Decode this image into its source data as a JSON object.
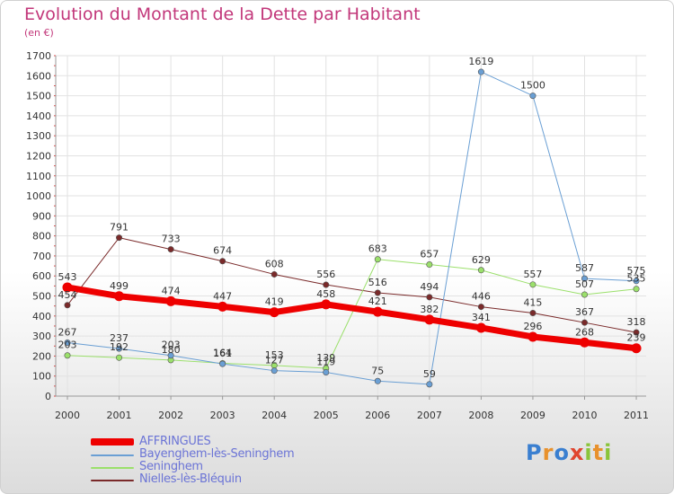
{
  "header": {
    "title": "Evolution du Montant de la Dette par Habitant",
    "subtitle": "(en €)"
  },
  "logo": {
    "text": "Proxiti",
    "letter_colors": [
      "#3a7fd0",
      "#e8912c",
      "#3a7fd0",
      "#e0452f",
      "#8ac43a",
      "#e8912c",
      "#8ac43a"
    ]
  },
  "chart_data": {
    "type": "line",
    "x": [
      "2000",
      "2001",
      "2002",
      "2003",
      "2004",
      "2005",
      "2006",
      "2007",
      "2008",
      "2009",
      "2010",
      "2011"
    ],
    "ylim": [
      0,
      1700
    ],
    "yticks": [
      "0",
      "100",
      "200",
      "300",
      "400",
      "500",
      "600",
      "700",
      "800",
      "900",
      "1000",
      "1100",
      "1200",
      "1300",
      "1400",
      "1500",
      "1600",
      "1700"
    ],
    "grid": true,
    "legend_position": "bottom-left",
    "series": [
      {
        "name": "Nielles-lès-Bléquin",
        "color": "#7a2a2a",
        "width": 1,
        "values": [
          454,
          791,
          733,
          674,
          608,
          556,
          516,
          494,
          446,
          415,
          367,
          318
        ]
      },
      {
        "name": "Seninghem",
        "color": "#9be06b",
        "width": 1,
        "values": [
          203,
          192,
          180,
          164,
          153,
          139,
          683,
          657,
          629,
          557,
          507,
          535
        ]
      },
      {
        "name": "Bayenghem-lès-Seninghem",
        "color": "#6a9fd4",
        "width": 1,
        "values": [
          267,
          237,
          203,
          161,
          127,
          119,
          75,
          59,
          1619,
          1500,
          587,
          575
        ]
      },
      {
        "name": "AFFRINGUES",
        "color": "#ee0000",
        "width": 7,
        "values": [
          543,
          499,
          474,
          447,
          419,
          458,
          421,
          382,
          341,
          296,
          268,
          239
        ]
      }
    ],
    "legend_order": [
      "AFFRINGUES",
      "Bayenghem-lès-Seninghem",
      "Seninghem",
      "Nielles-lès-Bléquin"
    ]
  }
}
